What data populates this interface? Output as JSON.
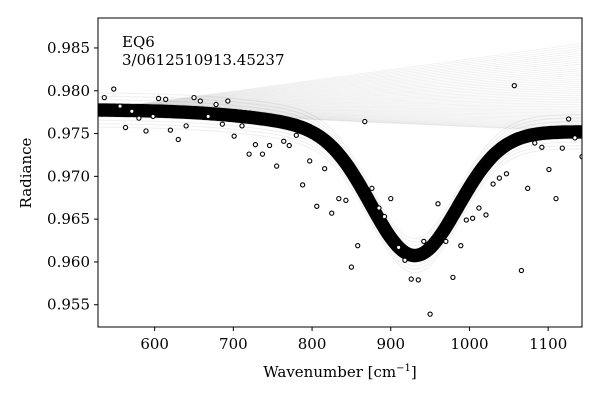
{
  "chart_data": {
    "type": "scatter",
    "annotation": [
      "EQ6",
      "3/0612510913.45237"
    ],
    "xlabel": "Wavenumber [cm",
    "xlabel_sup": "−1",
    "xlabel_end": "]",
    "ylabel": "Radiance",
    "xlim": [
      528,
      1143
    ],
    "ylim": [
      0.9524,
      0.9885
    ],
    "xticks": [
      600,
      700,
      800,
      900,
      1000,
      1100
    ],
    "yticks": [
      0.955,
      0.96,
      0.965,
      0.97,
      0.975,
      0.98,
      0.985
    ],
    "ytick_labels": [
      "0.955",
      "0.960",
      "0.965",
      "0.970",
      "0.975",
      "0.980",
      "0.985"
    ],
    "model_band": {
      "baseline_left": 0.9778,
      "baseline_right": 0.9752,
      "dip_center": 930,
      "dip_depth": 0.0146,
      "dip_width": 78,
      "thickness": 0.0012,
      "color": "#000000"
    },
    "ensemble_fan": {
      "start_x": 528,
      "start_y": 0.9778,
      "end_x": 1143,
      "end_y_min": 0.9752,
      "end_y_max": 0.9855,
      "color": "#000000"
    },
    "points": [
      [
        536,
        0.9792
      ],
      [
        548,
        0.9802
      ],
      [
        556,
        0.9782
      ],
      [
        563,
        0.9757
      ],
      [
        571,
        0.9776
      ],
      [
        580,
        0.9768
      ],
      [
        589,
        0.9753
      ],
      [
        598,
        0.977
      ],
      [
        605,
        0.9791
      ],
      [
        614,
        0.979
      ],
      [
        620,
        0.9754
      ],
      [
        630,
        0.9743
      ],
      [
        640,
        0.9759
      ],
      [
        650,
        0.9792
      ],
      [
        658,
        0.9788
      ],
      [
        668,
        0.977
      ],
      [
        678,
        0.9784
      ],
      [
        686,
        0.9761
      ],
      [
        693,
        0.9788
      ],
      [
        701,
        0.9747
      ],
      [
        711,
        0.9759
      ],
      [
        720,
        0.9726
      ],
      [
        728,
        0.9737
      ],
      [
        737,
        0.9726
      ],
      [
        746,
        0.9736
      ],
      [
        755,
        0.9712
      ],
      [
        764,
        0.9741
      ],
      [
        771,
        0.9736
      ],
      [
        780,
        0.9748
      ],
      [
        788,
        0.969
      ],
      [
        797,
        0.9718
      ],
      [
        806,
        0.9665
      ],
      [
        816,
        0.9709
      ],
      [
        825,
        0.9657
      ],
      [
        834,
        0.9674
      ],
      [
        843,
        0.9672
      ],
      [
        850,
        0.9594
      ],
      [
        858,
        0.9619
      ],
      [
        867,
        0.9764
      ],
      [
        876,
        0.9686
      ],
      [
        885,
        0.9663
      ],
      [
        892,
        0.9653
      ],
      [
        900,
        0.9674
      ],
      [
        910,
        0.9617
      ],
      [
        918,
        0.9602
      ],
      [
        926,
        0.958
      ],
      [
        935,
        0.9579
      ],
      [
        942,
        0.9624
      ],
      [
        950,
        0.9539
      ],
      [
        960,
        0.9668
      ],
      [
        970,
        0.9624
      ],
      [
        979,
        0.9582
      ],
      [
        989,
        0.9619
      ],
      [
        996,
        0.9649
      ],
      [
        1004,
        0.9651
      ],
      [
        1012,
        0.9663
      ],
      [
        1021,
        0.9655
      ],
      [
        1030,
        0.9691
      ],
      [
        1038,
        0.9698
      ],
      [
        1047,
        0.9703
      ],
      [
        1057,
        0.9806
      ],
      [
        1066,
        0.959
      ],
      [
        1074,
        0.9686
      ],
      [
        1083,
        0.9739
      ],
      [
        1092,
        0.9734
      ],
      [
        1101,
        0.9708
      ],
      [
        1110,
        0.9674
      ],
      [
        1118,
        0.9733
      ],
      [
        1126,
        0.9767
      ],
      [
        1134,
        0.9745
      ],
      [
        1143,
        0.9723
      ]
    ]
  }
}
